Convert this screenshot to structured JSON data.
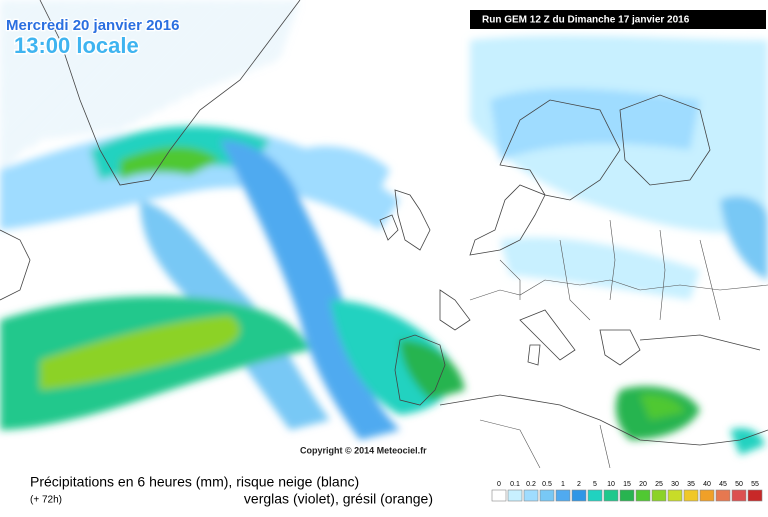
{
  "header": {
    "date": "Mercredi 20 janvier 2016",
    "time": "13:00 locale",
    "run": "Run GEM 12 Z du Dimanche 17 janvier 2016"
  },
  "copyright": "Copyright © 2014 Meteociel.fr",
  "caption": {
    "line1": "Précipitations en 6 heures (mm), risque neige (blanc)",
    "line2": "verglas (violet), grésil (orange)",
    "lead": "(+ 72h)"
  },
  "legend": {
    "ticks": [
      0,
      0.1,
      0.2,
      0.5,
      1,
      2,
      5,
      10,
      15,
      20,
      25,
      30,
      35,
      40,
      45,
      50,
      55
    ],
    "colors": [
      "#ffffff",
      "#c8f0ff",
      "#9fdcff",
      "#78c8f5",
      "#50aaf0",
      "#2f96e6",
      "#20d2c0",
      "#20c88c",
      "#28b450",
      "#50c832",
      "#8cd228",
      "#c8dc28",
      "#f0c828",
      "#f0a028",
      "#e67850",
      "#dc5050",
      "#c82828"
    ]
  }
}
